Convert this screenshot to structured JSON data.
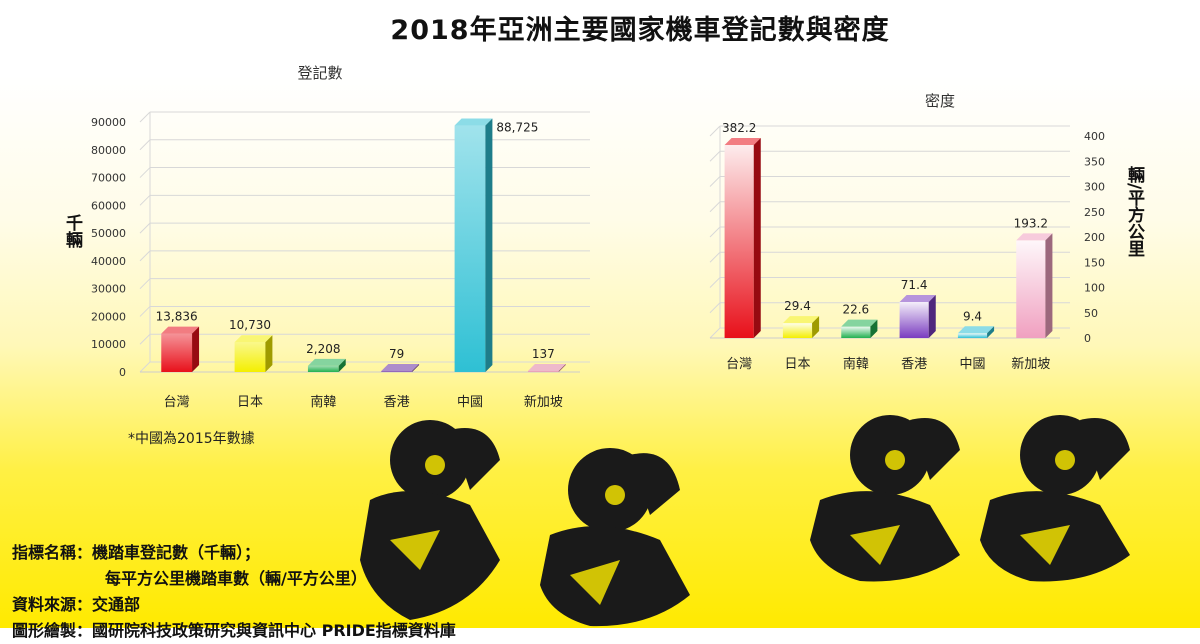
{
  "title": "2018年亞洲主要國家機車登記數與密度",
  "note": "*中國為2015年數據",
  "footer": {
    "indicator_label": "指標名稱：",
    "indicator_line1": "機踏車登記數（千輛）；",
    "indicator_line2": "每平方公里機踏車數（輛/平方公里）",
    "source_label": "資料來源：",
    "source_value": "交通部",
    "maker_label": "圖形繪製：",
    "maker_value": "國研院科技政策研究與資訊中心 PRIDE指標資料庫"
  },
  "chart_data": [
    {
      "type": "bar",
      "title": "登記數",
      "ylabel": "千輛",
      "categories": [
        "台灣",
        "日本",
        "南韓",
        "香港",
        "中國",
        "新加坡"
      ],
      "values": [
        13836,
        10730,
        2208,
        79,
        88725,
        137
      ],
      "value_labels": [
        "13,836",
        "10,730",
        "2,208",
        "79",
        "88,725",
        "137"
      ],
      "ylim": [
        0,
        90000
      ],
      "yticks": [
        0,
        10000,
        20000,
        30000,
        40000,
        50000,
        60000,
        70000,
        80000,
        90000
      ],
      "colors": [
        "#e8101a",
        "#f4ef00",
        "#22b050",
        "#6a2fa0",
        "#2ec0d4",
        "#e080a0"
      ],
      "grid": true
    },
    {
      "type": "bar",
      "title": "密度",
      "ylabel": "輛/平方公里",
      "categories": [
        "台灣",
        "日本",
        "南韓",
        "香港",
        "中國",
        "新加坡"
      ],
      "values": [
        382.2,
        29.4,
        22.6,
        71.4,
        9.4,
        193.2
      ],
      "value_labels": [
        "382.2",
        "29.4",
        "22.6",
        "71.4",
        "9.4",
        "193.2"
      ],
      "ylim": [
        0,
        400
      ],
      "yticks": [
        0,
        50,
        100,
        150,
        200,
        250,
        300,
        350,
        400
      ],
      "y_axis_side": "right",
      "colors": [
        "#e8101a",
        "#f4ef00",
        "#22b050",
        "#7a3cc0",
        "#2ec0d4",
        "#f0a0c0"
      ],
      "grid": true
    }
  ]
}
